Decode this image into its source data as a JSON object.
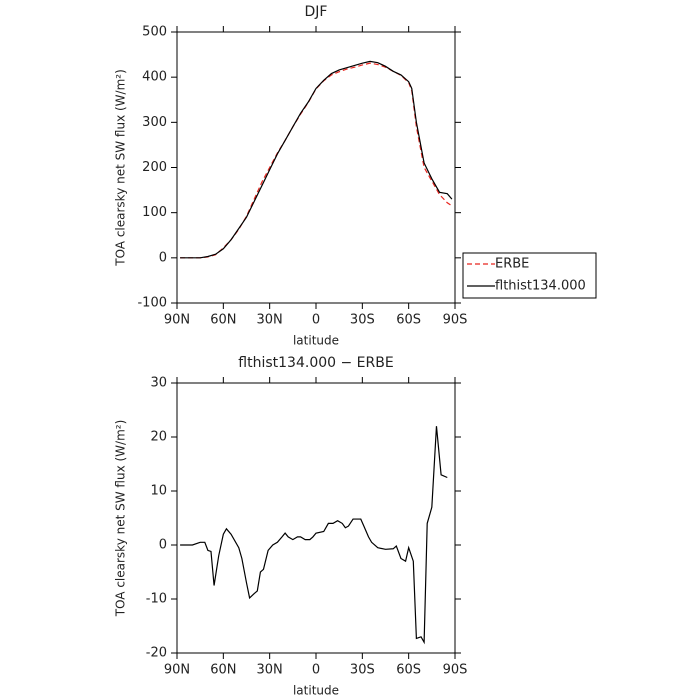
{
  "chart_data": [
    {
      "type": "line",
      "title": "DJF",
      "xlabel": "latitude",
      "ylabel": "TOA clearsky net SW flux (W/m²)",
      "x": [
        88,
        85,
        80,
        75,
        70,
        65,
        60,
        55,
        50,
        45,
        40,
        35,
        30,
        25,
        20,
        15,
        10,
        5,
        0,
        -5,
        -10,
        -15,
        -20,
        -25,
        -30,
        -35,
        -40,
        -45,
        -50,
        -55,
        -60,
        -62,
        -65,
        -70,
        -75,
        -80,
        -85,
        -88
      ],
      "series": [
        {
          "name": "ERBE",
          "color": "#e8251e",
          "dash": true,
          "values": [
            0,
            0,
            0,
            0,
            2,
            7,
            22,
            40,
            63,
            92,
            130,
            168,
            200,
            232,
            260,
            290,
            318,
            344,
            374,
            392,
            405,
            412,
            418,
            422,
            427,
            431,
            428,
            422,
            413,
            404,
            388,
            370,
            290,
            200,
            170,
            140,
            122,
            115
          ]
        },
        {
          "name": "flthist134.000",
          "color": "#000000",
          "dash": false,
          "values": [
            0,
            0,
            0,
            0,
            3,
            8,
            20,
            40,
            65,
            90,
            125,
            160,
            195,
            230,
            260,
            290,
            320,
            345,
            375,
            393,
            408,
            416,
            421,
            426,
            431,
            435,
            432,
            424,
            413,
            405,
            390,
            375,
            300,
            210,
            175,
            145,
            142,
            130
          ]
        }
      ],
      "xlim": [
        90,
        -90
      ],
      "xticks": [
        {
          "value": 90,
          "label": "90N"
        },
        {
          "value": 60,
          "label": "60N"
        },
        {
          "value": 30,
          "label": "30N"
        },
        0,
        {
          "value": -30,
          "label": "30S"
        },
        {
          "value": -60,
          "label": "60S"
        },
        {
          "value": -90,
          "label": "90S"
        }
      ],
      "ylim": [
        -100,
        500
      ],
      "yticks": [
        -100,
        0,
        100,
        200,
        300,
        400,
        500
      ],
      "legend": "right"
    },
    {
      "type": "line",
      "title": "flthist134.000 − ERBE",
      "xlabel": "latitude",
      "ylabel": "TOA clearsky net SW flux (W/m²)",
      "x": [
        88,
        85,
        80,
        75,
        72,
        70,
        68,
        66,
        63,
        60,
        58,
        55,
        50,
        48,
        45,
        43,
        40,
        38,
        36,
        34,
        31,
        28,
        25,
        22,
        20,
        18,
        15,
        12,
        10,
        7,
        4,
        2,
        0,
        -5,
        -8,
        -11,
        -14,
        -17,
        -19,
        -21,
        -24,
        -29,
        -31,
        -34,
        -36,
        -40,
        -45,
        -50,
        -52,
        -55,
        -58,
        -60,
        -63,
        -65,
        -68,
        -70,
        -72,
        -75,
        -78,
        -81,
        -85
      ],
      "series": [
        {
          "name": "flthist134.000 − ERBE",
          "color": "#000000",
          "dash": false,
          "values": [
            0,
            0,
            0,
            0.5,
            0.5,
            -1,
            -1.2,
            -7.5,
            -2,
            2,
            3,
            2,
            -0.5,
            -2.5,
            -7,
            -9.8,
            -9,
            -8.5,
            -5,
            -4.5,
            -1,
            0,
            0.5,
            1.5,
            2.2,
            1.5,
            1,
            1.5,
            1.5,
            1,
            1,
            1.5,
            2.2,
            2.5,
            4,
            4,
            4.5,
            4,
            3.2,
            3.5,
            4.8,
            4.8,
            3.5,
            1.5,
            0.5,
            -0.5,
            -0.8,
            -0.7,
            -0.2,
            -2.5,
            -3,
            -0.5,
            -3,
            -17.3,
            -17,
            -18,
            4,
            7,
            22,
            13,
            12.5
          ]
        }
      ],
      "xlim": [
        90,
        -90
      ],
      "xticks": [
        {
          "value": 90,
          "label": "90N"
        },
        {
          "value": 60,
          "label": "60N"
        },
        {
          "value": 30,
          "label": "30N"
        },
        0,
        {
          "value": -30,
          "label": "30S"
        },
        {
          "value": -60,
          "label": "60S"
        },
        {
          "value": -90,
          "label": "90S"
        }
      ],
      "ylim": [
        -20,
        30
      ],
      "yticks": [
        -20,
        -10,
        0,
        10,
        20,
        30
      ]
    }
  ]
}
